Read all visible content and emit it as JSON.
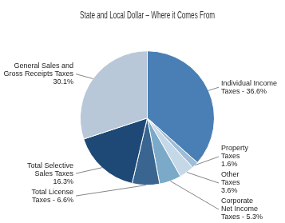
{
  "chart_data": {
    "type": "pie",
    "title": "State and Local Dollar – Where it Comes From",
    "categories": [
      "Individual Income\nTaxes - 36.6%",
      "Property\nTaxes\n1.6%",
      "Other\nTaxes\n3.6%",
      "Corporate\nNet Income\nTaxes - 5.3%",
      "Total License\nTaxes - 6.6%",
      "Total Selective\nSales Taxes\n16.3%",
      "General Sales and\nGross Receipts Taxes\n30.1%"
    ],
    "values": [
      36.6,
      1.6,
      3.6,
      5.3,
      6.6,
      16.3,
      30.1
    ],
    "colors": [
      "#4a7fb5",
      "#9dbdd8",
      "#c5d8e8",
      "#7aaac8",
      "#3a6591",
      "#1e4976",
      "#b8c8d8"
    ]
  }
}
